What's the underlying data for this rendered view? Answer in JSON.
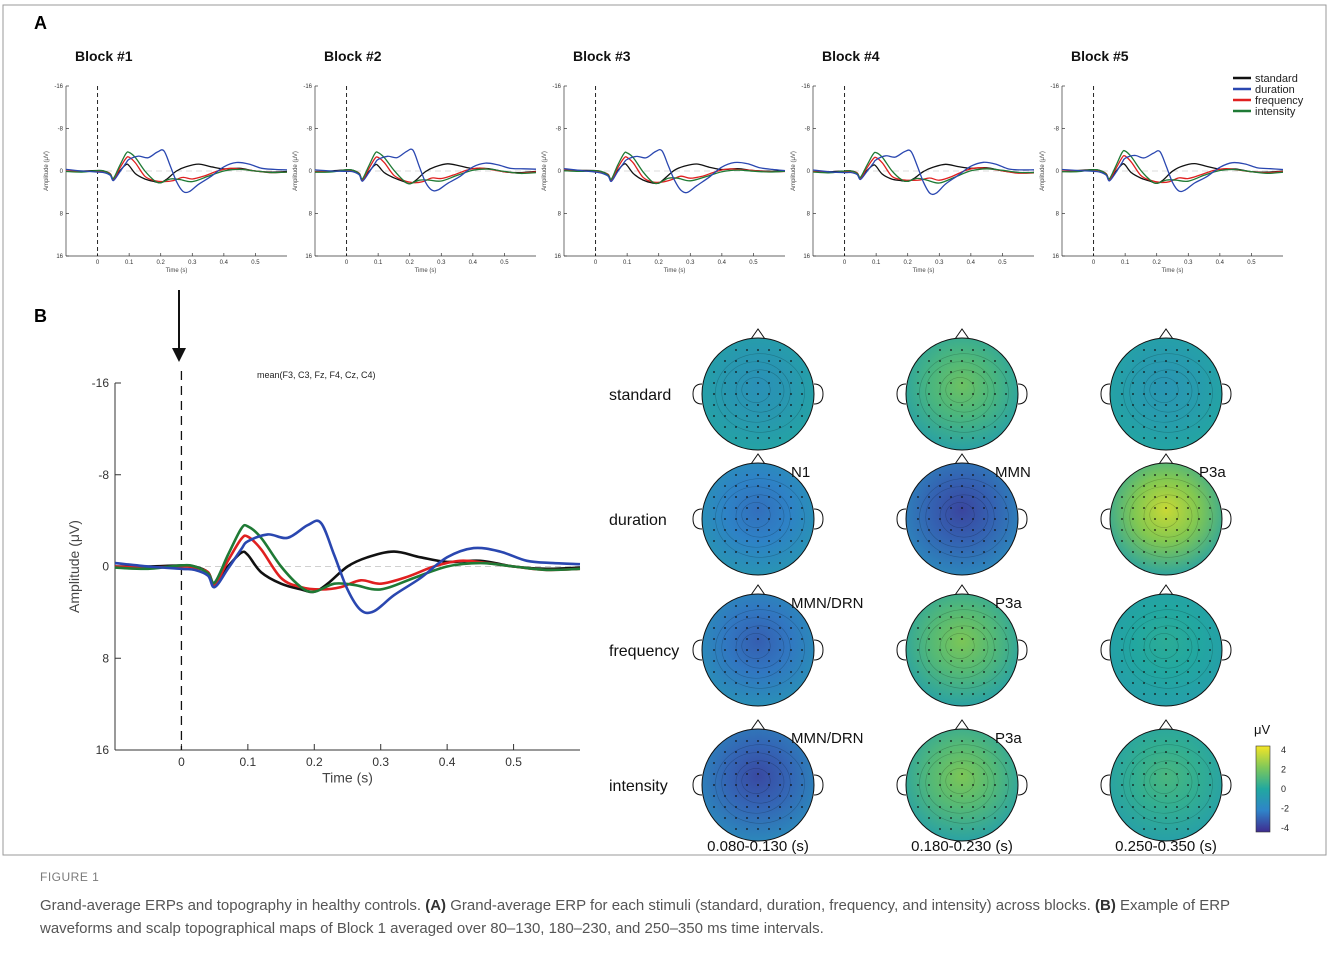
{
  "panels": {
    "a_label": "A",
    "b_label": "B",
    "block_titles": [
      "Block #1",
      "Block #2",
      "Block #3",
      "Block #4",
      "Block #5"
    ],
    "legend": [
      "standard",
      "duration",
      "frequency",
      "intensity"
    ],
    "series_colors": {
      "standard": "#111111",
      "duration": "#2a47b0",
      "frequency": "#e02020",
      "intensity": "#1f7a35"
    }
  },
  "chart_data": [
    {
      "type": "line",
      "title": "mean(F3, C3, Fz, F4, Cz, C4)",
      "xlabel": "Time (s)",
      "ylabel": "Amplitude (μV)",
      "xlim": [
        -0.1,
        0.6
      ],
      "ylim": [
        -16,
        16
      ],
      "y_inverted": true,
      "xticks": [
        "0",
        "0.1",
        "0.2",
        "0.3",
        "0.4",
        "0.5"
      ],
      "yticks": [
        "-16",
        "-8",
        "0",
        "8",
        "16"
      ],
      "series": [
        {
          "name": "standard",
          "x": [
            -0.1,
            -0.05,
            0,
            0.02,
            0.04,
            0.05,
            0.07,
            0.09,
            0.1,
            0.12,
            0.15,
            0.18,
            0.2,
            0.22,
            0.25,
            0.28,
            0.32,
            0.36,
            0.4,
            0.45,
            0.5,
            0.55,
            0.6
          ],
          "y": [
            0,
            0,
            -0.1,
            0,
            0.5,
            1.5,
            0,
            -1.2,
            -1,
            0.5,
            1.5,
            2,
            2.2,
            1.5,
            0,
            -0.8,
            -1.3,
            -0.8,
            -0.4,
            -0.5,
            0,
            0.2,
            0.1
          ]
        },
        {
          "name": "duration",
          "x": [
            -0.1,
            -0.05,
            0,
            0.02,
            0.04,
            0.05,
            0.07,
            0.09,
            0.1,
            0.13,
            0.16,
            0.19,
            0.21,
            0.23,
            0.25,
            0.27,
            0.29,
            0.32,
            0.36,
            0.4,
            0.44,
            0.48,
            0.52,
            0.56,
            0.6
          ],
          "y": [
            -0.3,
            0,
            0.2,
            0.3,
            0.8,
            1.8,
            0.2,
            -1.5,
            -2.2,
            -2.8,
            -2.5,
            -3.6,
            -3.8,
            -1,
            2,
            3.8,
            3.9,
            2.5,
            1,
            -0.8,
            -1.6,
            -1.3,
            -0.5,
            -0.3,
            -0.2
          ]
        },
        {
          "name": "frequency",
          "x": [
            -0.1,
            -0.05,
            0,
            0.02,
            0.04,
            0.05,
            0.07,
            0.09,
            0.1,
            0.12,
            0.15,
            0.18,
            0.21,
            0.24,
            0.27,
            0.3,
            0.34,
            0.38,
            0.42,
            0.46,
            0.5,
            0.55,
            0.6
          ],
          "y": [
            0,
            0.1,
            0,
            0.1,
            0.5,
            1.6,
            -0.5,
            -2.4,
            -2.6,
            -1.5,
            1,
            1.8,
            2,
            1.8,
            1.2,
            1.5,
            0.9,
            0,
            -0.5,
            -0.3,
            0,
            0.3,
            0.2
          ]
        },
        {
          "name": "intensity",
          "x": [
            -0.1,
            -0.05,
            0,
            0.02,
            0.04,
            0.05,
            0.07,
            0.09,
            0.1,
            0.12,
            0.15,
            0.18,
            0.2,
            0.23,
            0.26,
            0.3,
            0.35,
            0.4,
            0.45,
            0.5,
            0.55,
            0.6
          ],
          "y": [
            0.1,
            0.2,
            -0.1,
            0,
            0.6,
            1.4,
            -1,
            -3.3,
            -3.5,
            -2.5,
            0,
            1.8,
            2.2,
            1.5,
            1.6,
            2,
            1,
            0,
            -0.3,
            0,
            0.3,
            0.2
          ]
        }
      ]
    }
  ],
  "waveform_b": {
    "title": "mean(F3, C3, Fz, F4, Cz, C4)",
    "xlabel": "Time (s)",
    "ylabel": "Amplitude (μV)",
    "yticks": [
      "-16",
      "-8",
      "0",
      "8",
      "16"
    ],
    "xticks": [
      "0",
      "0.1",
      "0.2",
      "0.3",
      "0.4",
      "0.5"
    ]
  },
  "small_axes": {
    "ylabel": "Amplitude (μV)",
    "xlabel": "Time (s)",
    "yticks": [
      "-16",
      "-8",
      "0",
      "8",
      "16"
    ],
    "xticks": [
      "0",
      "0.1",
      "0.2",
      "0.3",
      "0.4",
      "0.5"
    ]
  },
  "topo": {
    "row_labels": [
      "standard",
      "duration",
      "frequency",
      "intensity"
    ],
    "intervals": [
      "0.080-0.130 (s)",
      "0.180-0.230 (s)",
      "0.250-0.350 (s)"
    ],
    "annotations": [
      {
        "row": 1,
        "col": 0,
        "text": "N1"
      },
      {
        "row": 1,
        "col": 1,
        "text": "MMN"
      },
      {
        "row": 1,
        "col": 2,
        "text": "P3a"
      },
      {
        "row": 2,
        "col": 0,
        "text": "MMN/DRN"
      },
      {
        "row": 2,
        "col": 1,
        "text": "P3a"
      },
      {
        "row": 3,
        "col": 0,
        "text": "MMN/DRN"
      },
      {
        "row": 3,
        "col": 1,
        "text": "P3a"
      }
    ],
    "colorbar_title": "μV",
    "colorbar_ticks": [
      "4",
      "2",
      "0",
      "-2",
      "-4"
    ],
    "map_levels": [
      [
        -1.2,
        1.5,
        -1.0
      ],
      [
        -2.4,
        -3.4,
        3.2
      ],
      [
        -2.8,
        1.8,
        0.2
      ],
      [
        -3.3,
        1.8,
        0.8
      ]
    ]
  },
  "caption": {
    "label": "FIGURE 1",
    "text_1": "Grand-average ERPs and topography in healthy controls. ",
    "a": "(A)",
    "text_2": " Grand-average ERP for each stimuli (standard, duration, frequency, and intensity) across blocks. ",
    "b": "(B)",
    "text_3": " Example of ERP waveforms and scalp topographical maps of Block 1 averaged over 80–130, 180–230, and 250–350 ms time intervals."
  }
}
